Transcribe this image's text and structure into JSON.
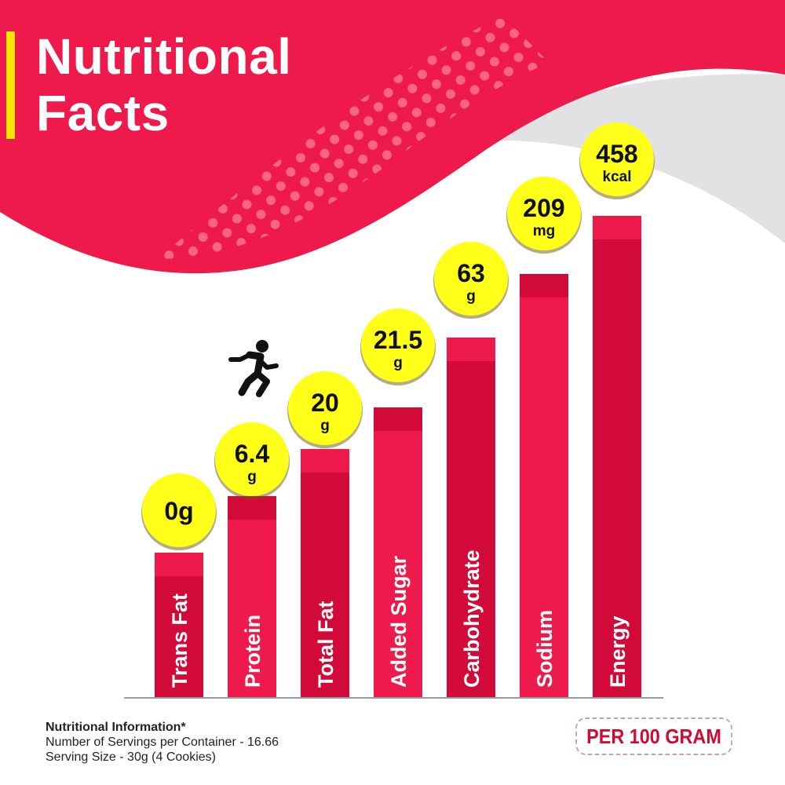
{
  "title": {
    "line1": "Nutritional",
    "line2": "Facts"
  },
  "colors": {
    "primary_red": "#ef1a4c",
    "dark_red": "#d20a3a",
    "badge_yellow": "#ffff1a",
    "accent_yellow": "#f7e600"
  },
  "chart_data": {
    "type": "bar",
    "categories": [
      "Trans Fat",
      "Protein",
      "Total Fat",
      "Added Sugar",
      "Carbohydrate",
      "Sodium",
      "Energy"
    ],
    "value_labels": [
      {
        "value": "0g",
        "unit": ""
      },
      {
        "value": "6.4",
        "unit": "g"
      },
      {
        "value": "20",
        "unit": "g"
      },
      {
        "value": "21.5",
        "unit": "g"
      },
      {
        "value": "63",
        "unit": "g"
      },
      {
        "value": "209",
        "unit": "mg"
      },
      {
        "value": "458",
        "unit": "kcal"
      }
    ],
    "values": [
      0,
      6.4,
      20,
      21.5,
      63,
      209,
      458
    ],
    "title": "",
    "xlabel": "",
    "ylabel": "",
    "legend": "none",
    "grid": false
  },
  "icon": "running-person-icon",
  "footer": {
    "heading": "Nutritional Information*",
    "servings": "Number of Servings per Container - 16.66",
    "serving_size": "Serving Size - 30g  (4 Cookies)",
    "basis": "PER 100 GRAM"
  }
}
